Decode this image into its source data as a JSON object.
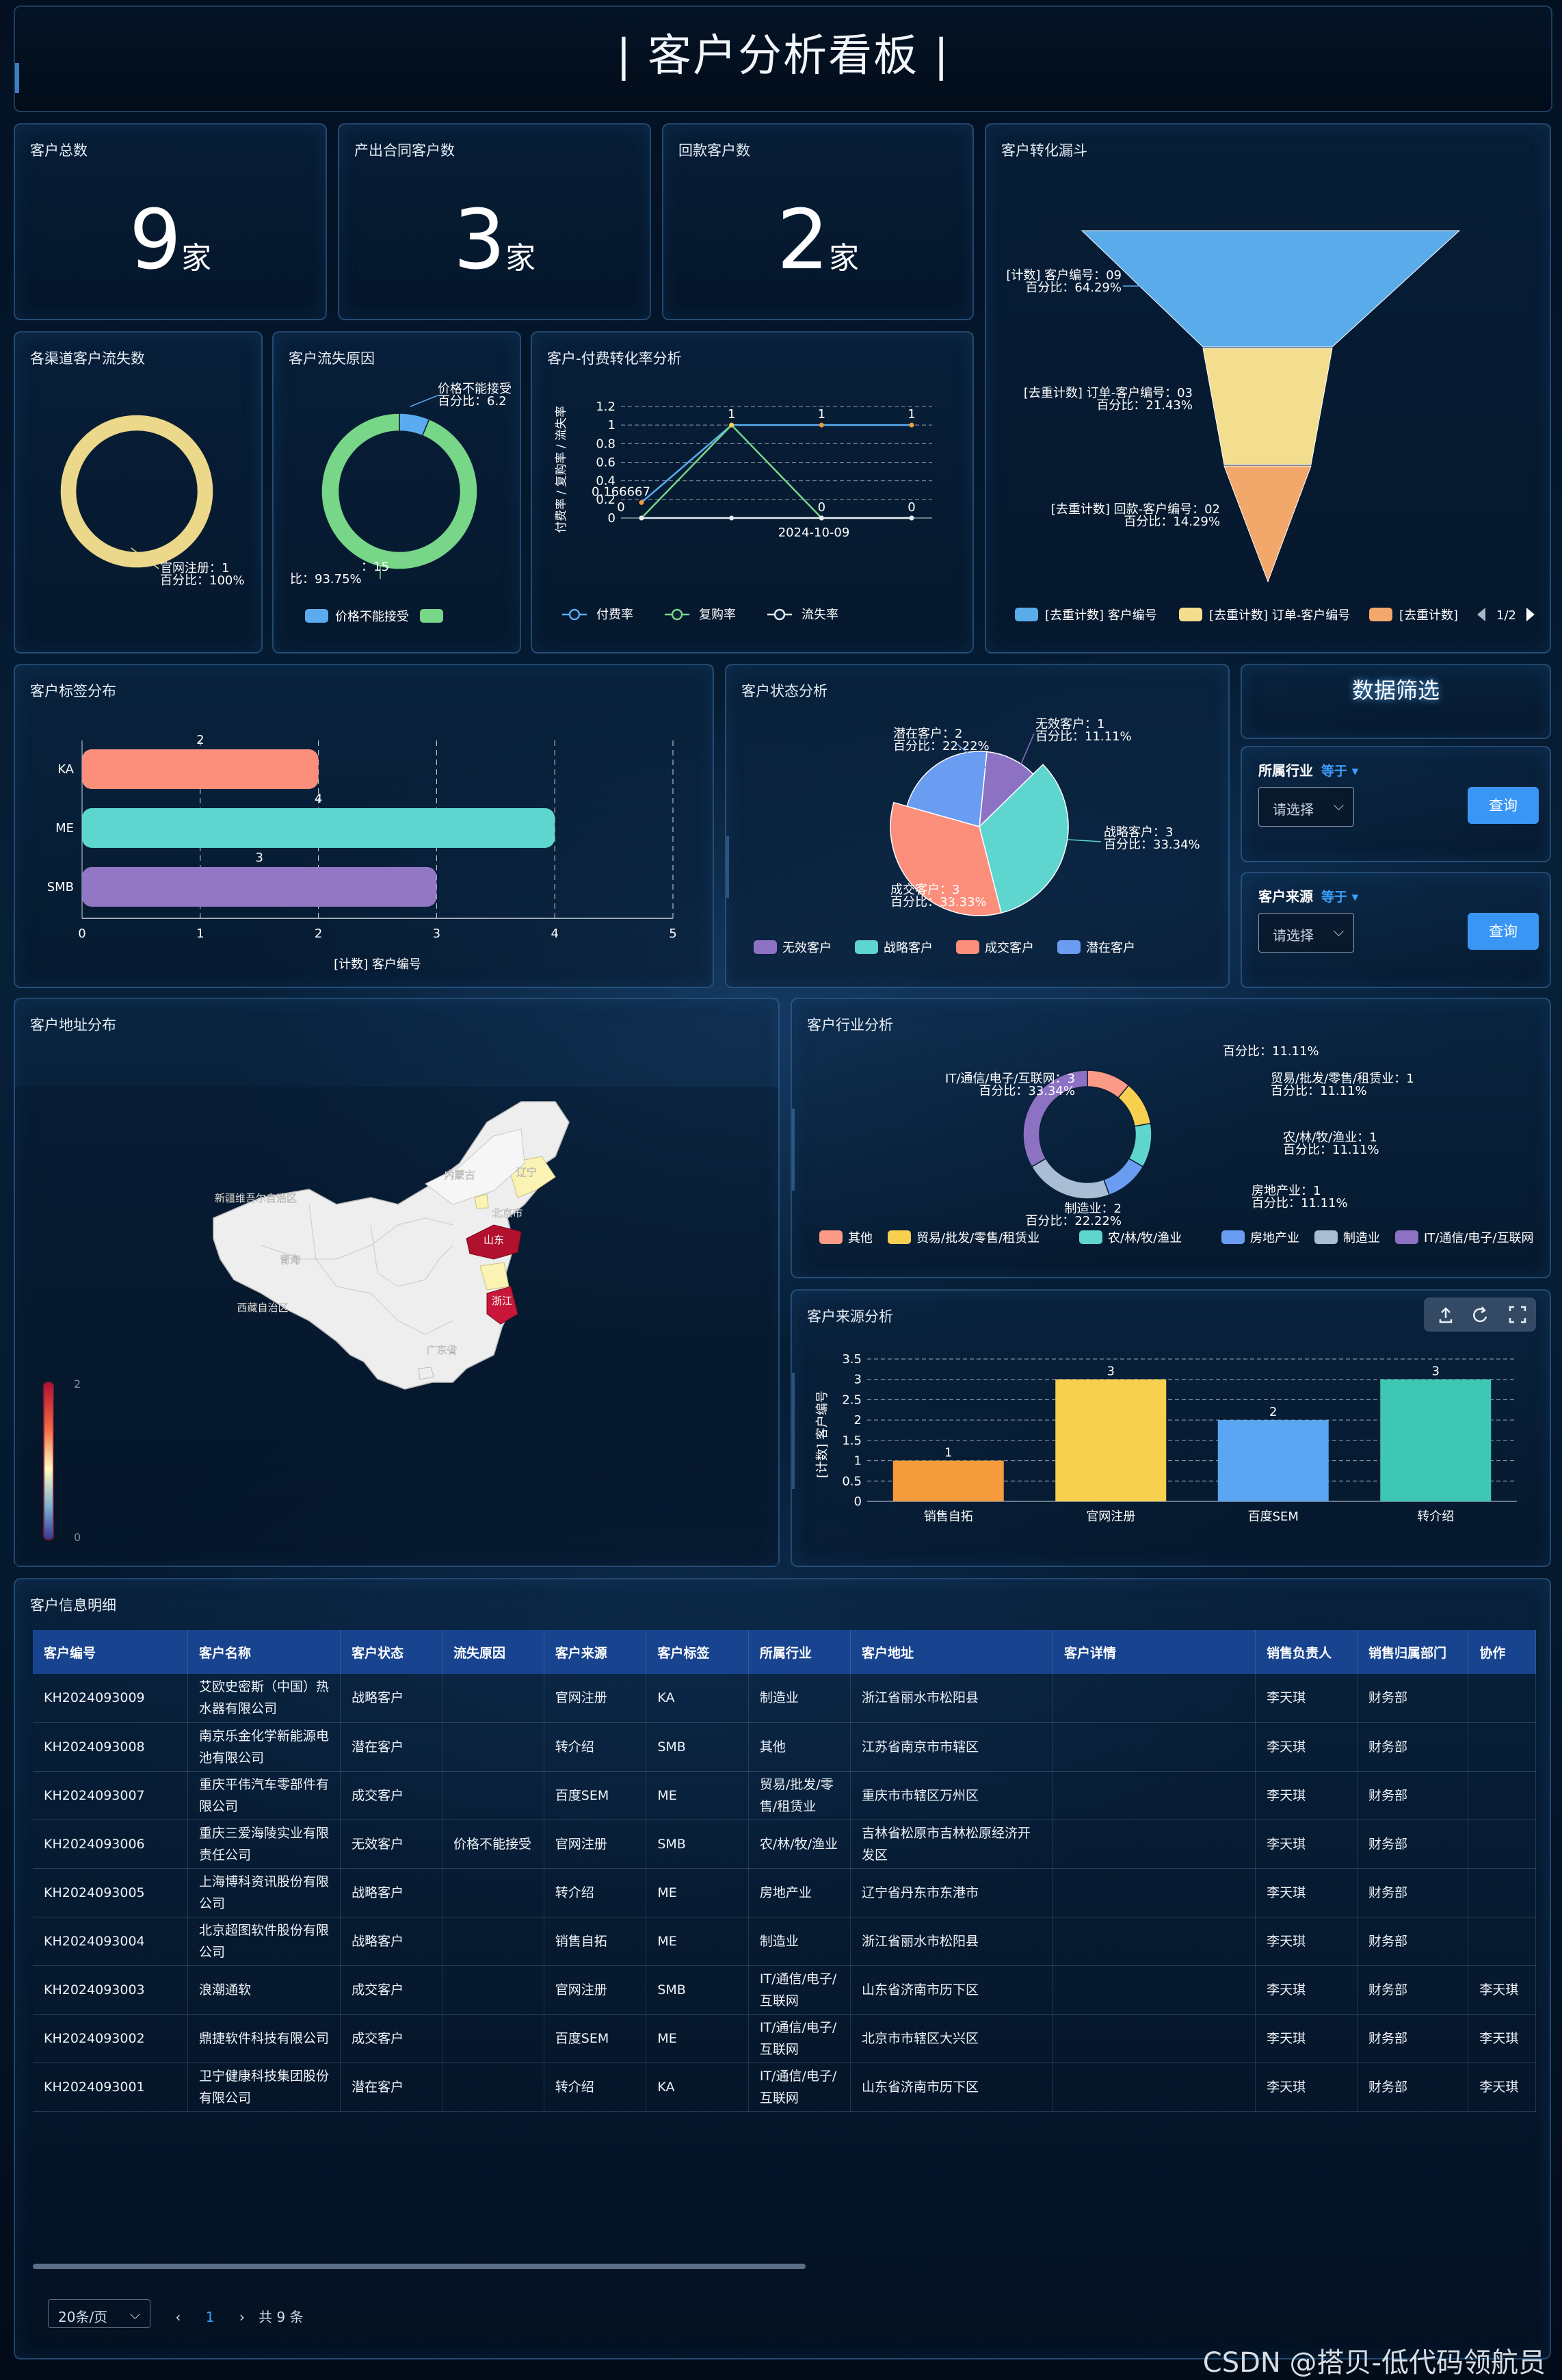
{
  "header": {
    "title": "| 客户分析看板 |"
  },
  "stats": [
    {
      "label": "客户总数",
      "value": "9",
      "unit": "家"
    },
    {
      "label": "产出合同客户数",
      "value": "3",
      "unit": "家"
    },
    {
      "label": "回款客户数",
      "value": "2",
      "unit": "家"
    }
  ],
  "panels": {
    "funnel": "客户转化漏斗",
    "channel_loss": "各渠道客户流失数",
    "loss_reason": "客户流失原因",
    "rate": "客户-付费转化率分析",
    "tags": "客户标签分布",
    "status": "客户状态分析",
    "filter": "数据筛选",
    "map": "客户地址分布",
    "industry": "客户行业分析",
    "source": "客户来源分析",
    "table": "客户信息明细"
  },
  "filter": {
    "industry_label": "所属行业",
    "industry_op": "等于",
    "source_label": "客户来源",
    "source_op": "等于",
    "placeholder": "请选择",
    "query": "查询",
    "caret": "⌵"
  },
  "chart_data": [
    {
      "id": "funnel",
      "type": "funnel",
      "stages": [
        {
          "label": "[计数] 客户编号：09",
          "pct": "百分比：64.29%",
          "value": 9
        },
        {
          "label": "[去重计数] 订单-客户编号：03",
          "pct": "百分比：21.43%",
          "value": 3
        },
        {
          "label": "[去重计数] 回款-客户编号：02",
          "pct": "百分比：14.29%",
          "value": 2
        }
      ],
      "legend": [
        "[去重计数] 客户编号",
        "[去重计数] 订单-客户编号",
        "[去重计数]"
      ],
      "pager": "1/2",
      "colors": [
        "#5aabe9",
        "#f2de8e",
        "#f2a86b"
      ]
    },
    {
      "id": "channel_loss",
      "type": "pie",
      "slices": [
        {
          "name": "官网注册",
          "value": 1,
          "label": "官网注册：1",
          "pct": "百分比：100%"
        }
      ],
      "colors": [
        "#ecd88a"
      ]
    },
    {
      "id": "loss_reason",
      "type": "pie",
      "slices": [
        {
          "name": "价格不能接受",
          "value": 1,
          "label": "价格不能接受",
          "pct": "百分比：6.2"
        },
        {
          "name": "",
          "value": 15,
          "label": "：15",
          "pct": "比：93.75%"
        }
      ],
      "legend": [
        "价格不能接受",
        ""
      ],
      "colors": [
        "#5aabf0",
        "#78d688"
      ]
    },
    {
      "id": "rate",
      "type": "line",
      "ylabel": "付费率 / 复购率 / 流失率",
      "xlabel": "2024-10-09",
      "yticks": [
        0,
        0.2,
        0.4,
        0.6,
        0.8,
        1,
        1.2
      ],
      "series": [
        {
          "name": "付费率",
          "values": [
            0.166667,
            1,
            1,
            1
          ],
          "labels": [
            "0.166667",
            "1",
            "1",
            "1"
          ],
          "color": "#5aabf0"
        },
        {
          "name": "复购率",
          "values": [
            0,
            1,
            0,
            0
          ],
          "labels": [
            "0",
            "",
            "0",
            "0"
          ],
          "color": "#78d688"
        },
        {
          "name": "流失率",
          "values": [
            0,
            0,
            0,
            0
          ],
          "labels": [
            "",
            "",
            "",
            ""
          ],
          "color": "#e6edf5"
        }
      ]
    },
    {
      "id": "tags",
      "type": "bar",
      "orientation": "horizontal",
      "categories": [
        "KA",
        "ME",
        "SMB"
      ],
      "values": [
        2,
        4,
        3
      ],
      "xlabel": "[计数] 客户编号",
      "xticks": [
        0,
        1,
        2,
        3,
        4,
        5
      ],
      "colors": [
        "#fc8e7c",
        "#5ed5cf",
        "#9277c4"
      ]
    },
    {
      "id": "status",
      "type": "pie",
      "slices": [
        {
          "name": "无效客户",
          "value": 1,
          "label": "无效客户：1",
          "pct": "百分比：11.11%"
        },
        {
          "name": "战略客户",
          "value": 3,
          "label": "战略客户：3",
          "pct": "百分比：33.34%"
        },
        {
          "name": "成交客户",
          "value": 3,
          "label": "成交客户：3",
          "pct": "百分比：33.33%"
        },
        {
          "name": "潜在客户",
          "value": 2,
          "label": "潜在客户：2",
          "pct": "百分比：22.22%"
        }
      ],
      "colors": [
        "#8d72c4",
        "#5ed5cf",
        "#fc8e7c",
        "#6a9cf2"
      ]
    },
    {
      "id": "industry",
      "type": "pie",
      "slices": [
        {
          "name": "其他",
          "value": 1,
          "label": "",
          "pct": "百分比：11.11%"
        },
        {
          "name": "贸易/批发/零售/租赁业",
          "value": 1,
          "label": "贸易/批发/零售/租赁业：1",
          "pct": "百分比：11.11%"
        },
        {
          "name": "农/林/牧/渔业",
          "value": 1,
          "label": "农/林/牧/渔业：1",
          "pct": "百分比：11.11%"
        },
        {
          "name": "房地产业",
          "value": 1,
          "label": "房地产业：1",
          "pct": "百分比：11.11%"
        },
        {
          "name": "制造业",
          "value": 2,
          "label": "制造业：2",
          "pct": "百分比：22.22%"
        },
        {
          "name": "IT/通信/电子/互联网",
          "value": 3,
          "label": "IT/通信/电子/互联网：3",
          "pct": "百分比：33.34%"
        }
      ],
      "colors": [
        "#fb9a86",
        "#f7d050",
        "#5ed5cf",
        "#6a9cf2",
        "#a9bed4",
        "#8d72c4"
      ]
    },
    {
      "id": "source",
      "type": "bar",
      "categories": [
        "销售自拓",
        "官网注册",
        "百度SEM",
        "转介绍"
      ],
      "values": [
        1,
        3,
        2,
        3
      ],
      "ylabel": "[计数] 客户编号",
      "yticks": [
        0,
        0.5,
        1,
        1.5,
        2,
        2.5,
        3,
        3.5
      ],
      "colors": [
        "#f49b3c",
        "#f7d050",
        "#5aa6f2",
        "#3ec8b4"
      ]
    }
  ],
  "map": {
    "provinces": [
      "内蒙古",
      "新疆维吾尔自治区",
      "青海",
      "西藏自治区",
      "山东",
      "北京市",
      "浙江",
      "辽宁",
      "广东省"
    ],
    "scale_max": "2",
    "scale_min": "0"
  },
  "table": {
    "columns": [
      "客户编号",
      "客户名称",
      "客户状态",
      "流失原因",
      "客户来源",
      "客户标签",
      "所属行业",
      "客户地址",
      "客户详情",
      "销售负责人",
      "销售归属部门",
      "协作"
    ],
    "rows": [
      [
        "KH2024093009",
        "艾欧史密斯（中国）热水器有限公司",
        "战略客户",
        "",
        "官网注册",
        "KA",
        "制造业",
        "浙江省丽水市松阳县",
        "",
        "李天琪",
        "财务部",
        ""
      ],
      [
        "KH2024093008",
        "南京乐金化学新能源电池有限公司",
        "潜在客户",
        "",
        "转介绍",
        "SMB",
        "其他",
        "江苏省南京市市辖区",
        "",
        "李天琪",
        "财务部",
        ""
      ],
      [
        "KH2024093007",
        "重庆平伟汽车零部件有限公司",
        "成交客户",
        "",
        "百度SEM",
        "ME",
        "贸易/批发/零售/租赁业",
        "重庆市市辖区万州区",
        "",
        "李天琪",
        "财务部",
        ""
      ],
      [
        "KH2024093006",
        "重庆三爱海陵实业有限责任公司",
        "无效客户",
        "价格不能接受",
        "官网注册",
        "SMB",
        "农/林/牧/渔业",
        "吉林省松原市吉林松原经济开发区",
        "",
        "李天琪",
        "财务部",
        ""
      ],
      [
        "KH2024093005",
        "上海博科资讯股份有限公司",
        "战略客户",
        "",
        "转介绍",
        "ME",
        "房地产业",
        "辽宁省丹东市东港市",
        "",
        "李天琪",
        "财务部",
        ""
      ],
      [
        "KH2024093004",
        "北京超图软件股份有限公司",
        "战略客户",
        "",
        "销售自拓",
        "ME",
        "制造业",
        "浙江省丽水市松阳县",
        "",
        "李天琪",
        "财务部",
        ""
      ],
      [
        "KH2024093003",
        "浪潮通软",
        "成交客户",
        "",
        "官网注册",
        "SMB",
        "IT/通信/电子/互联网",
        "山东省济南市历下区",
        "",
        "李天琪",
        "财务部",
        "李天琪"
      ],
      [
        "KH2024093002",
        "鼎捷软件科技有限公司",
        "成交客户",
        "",
        "百度SEM",
        "ME",
        "IT/通信/电子/互联网",
        "北京市市辖区大兴区",
        "",
        "李天琪",
        "财务部",
        "李天琪"
      ],
      [
        "KH2024093001",
        "卫宁健康科技集团股份有限公司",
        "潜在客户",
        "",
        "转介绍",
        "KA",
        "IT/通信/电子/互联网",
        "山东省济南市历下区",
        "",
        "李天琪",
        "财务部",
        "李天琪"
      ]
    ]
  },
  "pagination": {
    "page_size": "20条/页",
    "prev": "‹",
    "page": "1",
    "next": "›",
    "total": "共 9 条"
  },
  "watermark": "CSDN @搭贝-低代码领航员"
}
